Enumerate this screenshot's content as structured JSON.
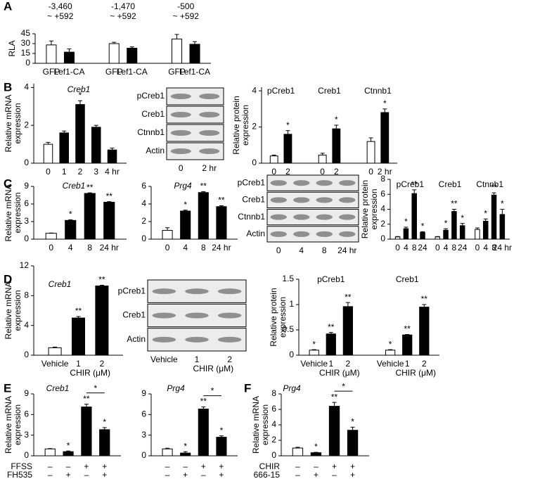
{
  "panel_labels": [
    "A",
    "B",
    "C",
    "D",
    "E",
    "F"
  ],
  "chart_data": [
    {
      "type": "bar",
      "ylabel": [
        "RLA"
      ],
      "ylim": [
        0,
        45
      ],
      "yticks": [
        0,
        15,
        30,
        45
      ],
      "groups": [
        {
          "name": [
            "-3,460",
            "~ +592"
          ],
          "categories": [
            "GFP",
            "Lef1-CA"
          ],
          "values": [
            28,
            17
          ],
          "errors": [
            6,
            5
          ],
          "colors": [
            "#ffffff",
            "#000000"
          ]
        },
        {
          "name": [
            "-1,470",
            "~ +592"
          ],
          "categories": [
            "GFP",
            "Lef1-CA"
          ],
          "values": [
            30,
            23
          ],
          "errors": [
            2,
            2
          ],
          "colors": [
            "#ffffff",
            "#000000"
          ]
        },
        {
          "name": [
            "-500",
            "~ +592"
          ],
          "categories": [
            "GFP",
            "Lef1-CA"
          ],
          "values": [
            37,
            29
          ],
          "errors": [
            7,
            4
          ],
          "colors": [
            "#ffffff",
            "#000000"
          ]
        }
      ]
    },
    {
      "type": "bar",
      "title": "Creb1",
      "ylabel": [
        "Relative mRNA",
        "expression"
      ],
      "ylim": [
        0,
        4.2
      ],
      "yticks": [
        0,
        2,
        4
      ],
      "categories": [
        "0",
        "1",
        "2",
        "3",
        "4 hr"
      ],
      "values": [
        1,
        1.6,
        3.1,
        1.9,
        0.7
      ],
      "errors": [
        0.1,
        0.1,
        0.2,
        0.1,
        0.1
      ],
      "colors": [
        "#ffffff",
        "#000000",
        "#000000",
        "#000000",
        "#000000"
      ],
      "stars": [
        null,
        null,
        "*",
        null,
        null
      ]
    },
    {
      "type": "bar",
      "ylabel": [
        "Relative protein",
        "expression"
      ],
      "ylim": [
        0,
        4.2
      ],
      "yticks": [
        0,
        2,
        4
      ],
      "groups": [
        {
          "name": "pCreb1",
          "categories": [
            "0",
            "2"
          ],
          "values": [
            0.4,
            1.6
          ],
          "errors": [
            0.05,
            0.2
          ],
          "colors": [
            "#ffffff",
            "#000000"
          ],
          "stars": [
            null,
            "*"
          ]
        },
        {
          "name": "Creb1",
          "categories": [
            "0",
            "2"
          ],
          "values": [
            0.45,
            1.9
          ],
          "errors": [
            0.1,
            0.2
          ],
          "colors": [
            "#ffffff",
            "#000000"
          ],
          "stars": [
            null,
            "*"
          ]
        },
        {
          "name": "Ctnnb1",
          "categories": [
            "0",
            "2 hr"
          ],
          "values": [
            1.2,
            2.8
          ],
          "errors": [
            0.2,
            0.2
          ],
          "colors": [
            "#ffffff",
            "#000000"
          ],
          "stars": [
            null,
            "*"
          ]
        }
      ]
    },
    {
      "type": "bar",
      "title": "Creb1",
      "ylabel": [
        "Relative mRNA",
        "expression"
      ],
      "ylim": [
        0,
        9
      ],
      "yticks": [
        0,
        3,
        6,
        9
      ],
      "categories": [
        "0",
        "4",
        "8",
        "24 hr"
      ],
      "values": [
        1,
        3.2,
        7.8,
        6.3
      ],
      "errors": [
        0.05,
        0.1,
        0.1,
        0.1
      ],
      "colors": [
        "#ffffff",
        "#000000",
        "#000000",
        "#000000"
      ],
      "stars": [
        null,
        "*",
        "**",
        "**"
      ]
    },
    {
      "type": "bar",
      "title": "Prg4",
      "ylim": [
        0,
        6
      ],
      "yticks": [
        0,
        2,
        4,
        6
      ],
      "categories": [
        "0",
        "4",
        "8",
        "24 hr"
      ],
      "values": [
        1,
        3.2,
        5.3,
        3.7
      ],
      "errors": [
        0.3,
        0.1,
        0.1,
        0.1
      ],
      "colors": [
        "#ffffff",
        "#000000",
        "#000000",
        "#000000"
      ],
      "stars": [
        null,
        "*",
        "**",
        "**"
      ]
    },
    {
      "type": "bar",
      "ylabel": [
        "Relative protein",
        "expression"
      ],
      "ylim": [
        0,
        8
      ],
      "yticks": [
        0,
        2,
        4,
        6,
        8
      ],
      "groups": [
        {
          "name": "pCreb1",
          "categories": [
            "0",
            "4",
            "8",
            "24"
          ],
          "values": [
            0.3,
            1.4,
            6.1,
            0.9
          ],
          "errors": [
            0.05,
            0.2,
            0.5,
            0.1
          ],
          "colors": [
            "#ffffff",
            "#000000",
            "#000000",
            "#000000"
          ],
          "stars": [
            null,
            "*",
            "**",
            "*"
          ]
        },
        {
          "name": "Creb1",
          "categories": [
            "0",
            "4",
            "8",
            "24"
          ],
          "values": [
            0.3,
            1.2,
            3.7,
            1.8
          ],
          "errors": [
            0.05,
            0.2,
            0.3,
            0.3
          ],
          "colors": [
            "#ffffff",
            "#000000",
            "#000000",
            "#000000"
          ],
          "stars": [
            null,
            "*",
            "**",
            "*"
          ]
        },
        {
          "name": "Ctnnb1",
          "categories": [
            "0",
            "4",
            "8",
            "24 hr"
          ],
          "values": [
            1.3,
            2.4,
            5.9,
            3.3
          ],
          "errors": [
            0.2,
            0.3,
            0.3,
            0.7
          ],
          "colors": [
            "#ffffff",
            "#000000",
            "#000000",
            "#000000"
          ],
          "stars": [
            null,
            "*",
            "**",
            "*"
          ]
        }
      ]
    },
    {
      "type": "bar",
      "title": "Creb1",
      "ylabel": [
        "Relative mRNA",
        "expression"
      ],
      "ylim": [
        0,
        12
      ],
      "yticks": [
        0,
        4,
        8,
        12
      ],
      "categories": [
        "Vehicle",
        "1",
        "2"
      ],
      "sublabel": "CHIR (μM)",
      "values": [
        1,
        5,
        9.3
      ],
      "errors": [
        0.1,
        0.2,
        0.1
      ],
      "colors": [
        "#ffffff",
        "#000000",
        "#000000"
      ],
      "stars": [
        null,
        "**",
        "**"
      ]
    },
    {
      "type": "bar",
      "ylabel": [
        "Relative protein",
        "expression"
      ],
      "ylim": [
        0,
        1.5
      ],
      "yticks": [
        0,
        0.5,
        1,
        1.5
      ],
      "groups": [
        {
          "name": "pCreb1",
          "categories": [
            "Vehicle",
            "1",
            "2"
          ],
          "sublabel": "CHIR (μM)",
          "values": [
            0.1,
            0.42,
            0.96
          ],
          "errors": [
            0.01,
            0.03,
            0.08
          ],
          "colors": [
            "#ffffff",
            "#000000",
            "#000000"
          ],
          "stars": [
            "*",
            "**",
            "**"
          ]
        },
        {
          "name": "Creb1",
          "categories": [
            "Vehicle",
            "1",
            "2"
          ],
          "sublabel": "CHIR (μM)",
          "values": [
            0.1,
            0.4,
            0.95
          ],
          "errors": [
            0.01,
            0.01,
            0.05
          ],
          "colors": [
            "#ffffff",
            "#000000",
            "#000000"
          ],
          "stars": [
            "*",
            "**",
            "**"
          ]
        }
      ]
    },
    {
      "type": "bar",
      "title": "Creb1",
      "ylabel": [
        "Relative mRNA",
        "expression"
      ],
      "ylim": [
        0,
        9
      ],
      "yticks": [
        0,
        3,
        6,
        9
      ],
      "values": [
        1,
        0.6,
        7.1,
        3.8
      ],
      "errors": [
        0.05,
        0.1,
        0.4,
        0.3
      ],
      "colors": [
        "#ffffff",
        "#000000",
        "#000000",
        "#000000"
      ],
      "stars": [
        null,
        "*",
        "**",
        "*"
      ],
      "comparison": "*",
      "treatments": [
        {
          "name": "FFSS",
          "signs": [
            "–",
            "–",
            "+",
            "+"
          ]
        },
        {
          "name": "FH535",
          "signs": [
            "–",
            "+",
            "–",
            "+"
          ]
        }
      ]
    },
    {
      "type": "bar",
      "title": "Prg4",
      "ylim": [
        0,
        9
      ],
      "yticks": [
        0,
        3,
        6,
        9
      ],
      "values": [
        1,
        0.4,
        6.8,
        2.7
      ],
      "errors": [
        0.1,
        0.2,
        0.3,
        0.2
      ],
      "colors": [
        "#ffffff",
        "#000000",
        "#000000",
        "#000000"
      ],
      "stars": [
        null,
        "*",
        "**",
        "*"
      ],
      "comparison": "*",
      "treatments": [
        {
          "signs": [
            "–",
            "–",
            "+",
            "+"
          ]
        },
        {
          "signs": [
            "–",
            "+",
            "–",
            "+"
          ]
        }
      ]
    },
    {
      "type": "bar",
      "title": "Prg4",
      "ylabel": [
        "Relative mRNA",
        "expression"
      ],
      "ylim": [
        0,
        8
      ],
      "yticks": [
        0,
        2,
        4,
        6,
        8
      ],
      "values": [
        1,
        0.4,
        6.4,
        3.3
      ],
      "errors": [
        0.1,
        0.05,
        0.5,
        0.4
      ],
      "colors": [
        "#ffffff",
        "#000000",
        "#000000",
        "#000000"
      ],
      "stars": [
        null,
        "*",
        "**",
        "*"
      ],
      "comparison": "*",
      "treatments": [
        {
          "name": "CHIR",
          "signs": [
            "–",
            "–",
            "+",
            "+"
          ]
        },
        {
          "name": "666-15",
          "signs": [
            "–",
            "+",
            "–",
            "+"
          ]
        }
      ]
    }
  ],
  "blots": [
    {
      "rows": [
        "pCreb1",
        "Creb1",
        "Ctnnb1",
        "Actin"
      ],
      "lanes": [
        "0",
        "2 hr"
      ]
    },
    {
      "rows": [
        "pCreb1",
        "Creb1",
        "Ctnnb1",
        "Actin"
      ],
      "lanes": [
        "0",
        "4",
        "8",
        "24 hr"
      ]
    },
    {
      "rows": [
        "pCreb1",
        "Creb1",
        "Actin"
      ],
      "lanes": [
        "Vehicle",
        "1",
        "2"
      ],
      "sublabel": "CHIR (μM)"
    }
  ]
}
